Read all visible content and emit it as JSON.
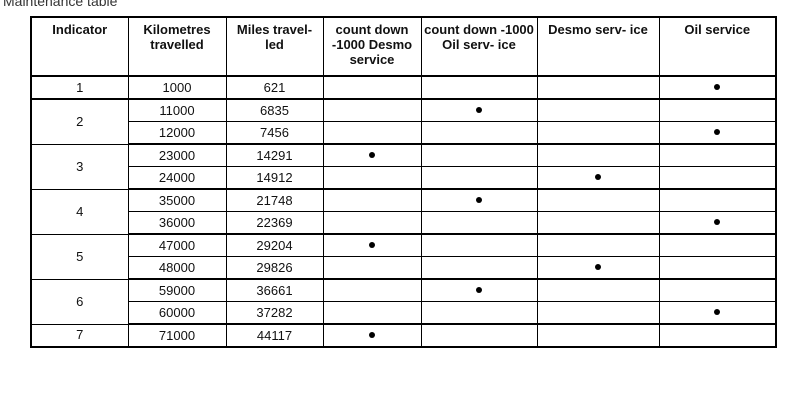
{
  "caption": "Maintenance table",
  "headers": [
    "Indicator",
    "Kilometres travelled",
    "Miles travel- led",
    "count down -1000 Desmo service",
    "count down -1000 Oil serv- ice",
    "Desmo serv- ice",
    "Oil service"
  ],
  "rows": [
    {
      "indicator": "1",
      "km": "1000",
      "miles": "621",
      "cd_desmo": false,
      "cd_oil": false,
      "desmo": false,
      "oil": true
    },
    {
      "indicator": "2",
      "km": "11000",
      "miles": "6835",
      "cd_desmo": false,
      "cd_oil": true,
      "desmo": false,
      "oil": false
    },
    {
      "indicator": "2",
      "km": "12000",
      "miles": "7456",
      "cd_desmo": false,
      "cd_oil": false,
      "desmo": false,
      "oil": true
    },
    {
      "indicator": "3",
      "km": "23000",
      "miles": "14291",
      "cd_desmo": true,
      "cd_oil": false,
      "desmo": false,
      "oil": false
    },
    {
      "indicator": "3",
      "km": "24000",
      "miles": "14912",
      "cd_desmo": false,
      "cd_oil": false,
      "desmo": true,
      "oil": false
    },
    {
      "indicator": "4",
      "km": "35000",
      "miles": "21748",
      "cd_desmo": false,
      "cd_oil": true,
      "desmo": false,
      "oil": false
    },
    {
      "indicator": "4",
      "km": "36000",
      "miles": "22369",
      "cd_desmo": false,
      "cd_oil": false,
      "desmo": false,
      "oil": true
    },
    {
      "indicator": "5",
      "km": "47000",
      "miles": "29204",
      "cd_desmo": true,
      "cd_oil": false,
      "desmo": false,
      "oil": false
    },
    {
      "indicator": "5",
      "km": "48000",
      "miles": "29826",
      "cd_desmo": false,
      "cd_oil": false,
      "desmo": true,
      "oil": false
    },
    {
      "indicator": "6",
      "km": "59000",
      "miles": "36661",
      "cd_desmo": false,
      "cd_oil": true,
      "desmo": false,
      "oil": false
    },
    {
      "indicator": "6",
      "km": "60000",
      "miles": "37282",
      "cd_desmo": false,
      "cd_oil": false,
      "desmo": false,
      "oil": true
    },
    {
      "indicator": "7",
      "km": "71000",
      "miles": "44117",
      "cd_desmo": true,
      "cd_oil": false,
      "desmo": false,
      "oil": false
    }
  ]
}
